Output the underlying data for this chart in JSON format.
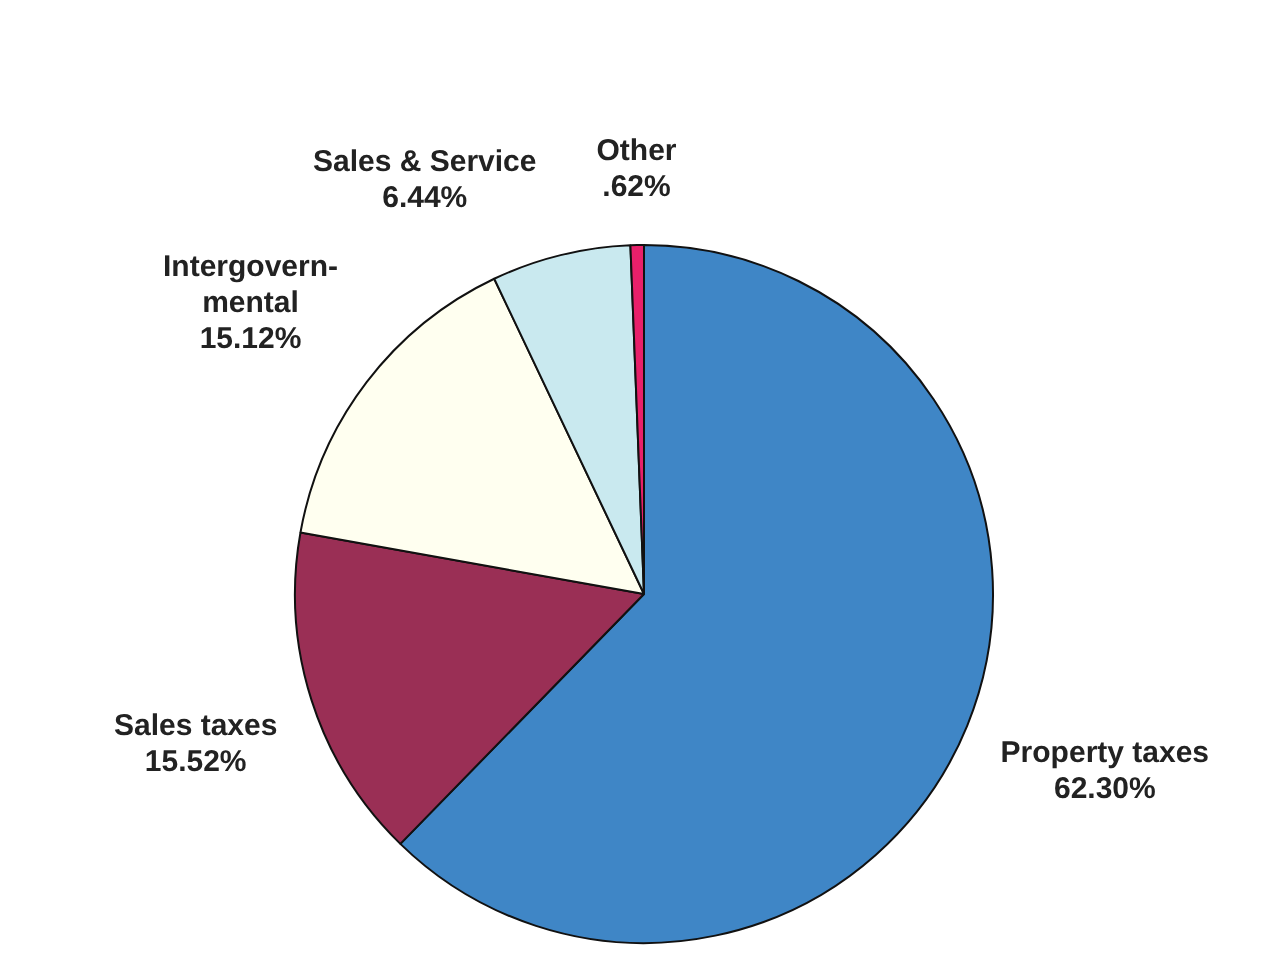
{
  "chart_data": {
    "type": "pie",
    "categories": [
      "Property taxes",
      "Sales taxes",
      "Intergovern-mental",
      "Sales & Service",
      "Other"
    ],
    "values": [
      62.3,
      15.52,
      15.12,
      6.44,
      0.62
    ],
    "value_labels": [
      "62.30%",
      "15.52%",
      "15.12%",
      "6.44%",
      ".62%"
    ],
    "colors": [
      "#3f86c6",
      "#9a2f55",
      "#fffff0",
      "#c9e9ef",
      "#e8206a"
    ],
    "legend": false
  }
}
